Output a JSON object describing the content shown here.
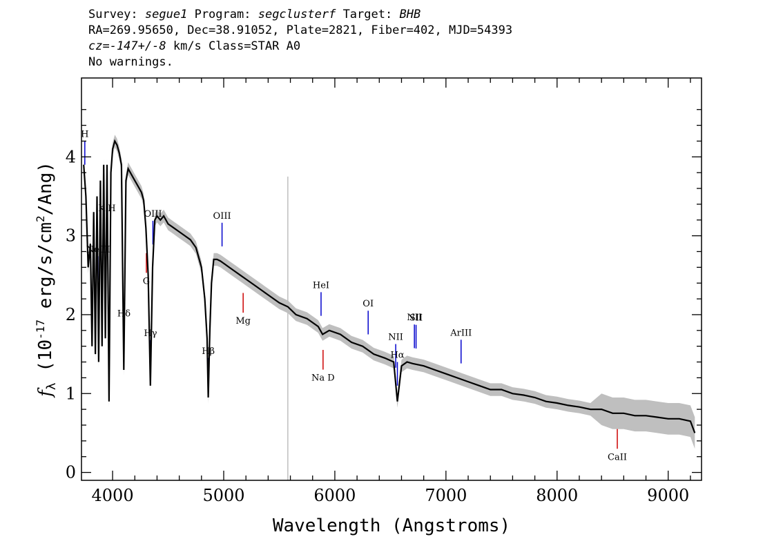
{
  "header": {
    "survey_label": "Survey:",
    "survey": "segue1",
    "program_label": "Program:",
    "program": "segclusterf",
    "target_label": "Target:",
    "target": "BHB",
    "line2": "RA=269.95650, Dec=38.91052, Plate=2821, Fiber=402, MJD=54393",
    "cz": "cz=-147+/-8",
    "cz_units": "km/s Class=STAR A0",
    "warnings": "No warnings."
  },
  "colors": {
    "flux": "#000000",
    "error_band": "#bfbfbf",
    "emission_line": "#0000cc",
    "absorption_line": "#cc0000"
  },
  "chart_data": {
    "type": "line",
    "title": "",
    "xlabel": "Wavelength (Angstroms)",
    "ylabel_text": "(10",
    "ylabel_exponent": "-17",
    "ylabel_units": "erg/s/cm",
    "ylabel_units_exp": "2",
    "ylabel_tail": "/Ang)",
    "ylabel_symbol": "f",
    "ylabel_sub": "λ",
    "xlim": [
      3720,
      9300
    ],
    "ylim": [
      -0.1,
      5.0
    ],
    "xticks": [
      4000,
      5000,
      6000,
      7000,
      8000,
      9000
    ],
    "yticks": [
      0,
      1,
      2,
      3,
      4
    ],
    "grid": false,
    "series": [
      {
        "x": [
          3740,
          3760,
          3780,
          3800,
          3815,
          3830,
          3845,
          3860,
          3875,
          3890,
          3905,
          3920,
          3935,
          3950,
          3968,
          3985,
          4000,
          4020,
          4040,
          4060,
          4080,
          4101,
          4120,
          4140,
          4160,
          4180,
          4200,
          4220,
          4240,
          4260,
          4280,
          4300,
          4320,
          4340,
          4360,
          4380,
          4400,
          4430,
          4460,
          4500,
          4550,
          4600,
          4650,
          4700,
          4750,
          4800,
          4830,
          4850,
          4861,
          4875,
          4890,
          4910,
          4940,
          4970,
          5000,
          5050,
          5100,
          5150,
          5200,
          5300,
          5400,
          5500,
          5577,
          5650,
          5750,
          5850,
          5890,
          5950,
          6050,
          6150,
          6250,
          6350,
          6450,
          6530,
          6563,
          6600,
          6650,
          6700,
          6800,
          6900,
          7000,
          7100,
          7200,
          7300,
          7400,
          7500,
          7600,
          7700,
          7800,
          7900,
          8000,
          8100,
          8200,
          8300,
          8400,
          8500,
          8600,
          8700,
          8800,
          8900,
          9000,
          9100,
          9200,
          9240
        ],
        "values": [
          3.9,
          3.5,
          2.6,
          2.9,
          1.6,
          3.3,
          1.5,
          3.5,
          1.4,
          3.7,
          1.6,
          3.9,
          1.7,
          3.9,
          0.9,
          3.8,
          4.1,
          4.2,
          4.15,
          4.05,
          3.9,
          1.3,
          3.7,
          3.85,
          3.8,
          3.75,
          3.7,
          3.65,
          3.6,
          3.55,
          3.45,
          3.1,
          2.5,
          1.1,
          2.6,
          3.2,
          3.25,
          3.2,
          3.25,
          3.15,
          3.1,
          3.05,
          3.0,
          2.95,
          2.85,
          2.6,
          2.2,
          1.7,
          0.95,
          1.8,
          2.4,
          2.7,
          2.7,
          2.68,
          2.65,
          2.6,
          2.55,
          2.5,
          2.45,
          2.35,
          2.25,
          2.15,
          2.1,
          2.0,
          1.95,
          1.85,
          1.75,
          1.8,
          1.75,
          1.65,
          1.6,
          1.5,
          1.45,
          1.4,
          0.9,
          1.35,
          1.4,
          1.38,
          1.35,
          1.3,
          1.25,
          1.2,
          1.15,
          1.1,
          1.05,
          1.05,
          1.0,
          0.98,
          0.95,
          0.9,
          0.88,
          0.85,
          0.83,
          0.8,
          0.8,
          0.75,
          0.75,
          0.72,
          0.72,
          0.7,
          0.68,
          0.68,
          0.65,
          0.5
        ]
      }
    ],
    "emission_lines": [
      {
        "label": "H",
        "wavelength": 3750
      },
      {
        "label": "NeIII",
        "wavelength": 3869
      },
      {
        "label": "Hδ",
        "wavelength": 4102
      },
      {
        "label": "Hγ",
        "wavelength": 4341
      },
      {
        "label": "OIII",
        "wavelength": 4363
      },
      {
        "label": "Hβ",
        "wavelength": 4861
      },
      {
        "label": "OIII",
        "wavelength": 4985
      },
      {
        "label": "HeI",
        "wavelength": 5876
      },
      {
        "label": "OI",
        "wavelength": 6300
      },
      {
        "label": "NII",
        "wavelength": 6548
      },
      {
        "label": "Hα",
        "wavelength": 6563
      },
      {
        "label": "NII",
        "wavelength": 6716
      },
      {
        "label": "SII",
        "wavelength": 6731
      },
      {
        "label": "ArIII",
        "wavelength": 7136
      }
    ],
    "absorption_lines": [
      {
        "label": "K H",
        "wavelength": 3950
      },
      {
        "label": "G",
        "wavelength": 4304
      },
      {
        "label": "Mg",
        "wavelength": 5175
      },
      {
        "label": "Na D",
        "wavelength": 5894
      },
      {
        "label": "CaII",
        "wavelength": 8542
      }
    ]
  }
}
